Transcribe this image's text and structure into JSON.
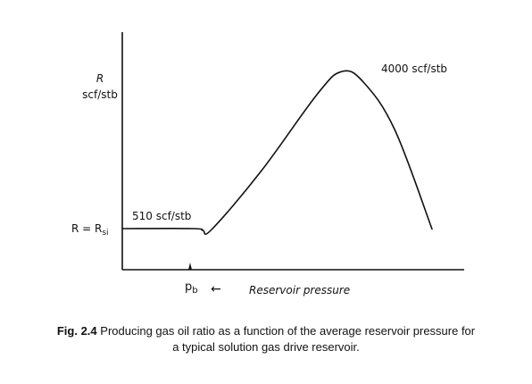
{
  "chart_data": {
    "type": "line",
    "title": "",
    "xlabel": "Reservoir pressure",
    "ylabel": "R\nscf/stb",
    "ylabel_line1": "R",
    "ylabel_line2": "scf/stb",
    "x_axis_direction": "decreasing pressure to the right",
    "annotations": {
      "rsi_axis_label": "R = R",
      "rsi_subscript": "si",
      "initial_value_label": "510 scf/stb",
      "peak_value_label": "4000 scf/stb",
      "bubble_point_label": "p",
      "bubble_point_subscript": "b",
      "arrow": "←"
    },
    "series": [
      {
        "description": "Producing gas oil ratio R",
        "points": [
          {
            "x": 0,
            "y": 510
          },
          {
            "x": 0.23,
            "y": 510
          },
          {
            "x": 0.26,
            "y": 470
          },
          {
            "x": 0.29,
            "y": 500
          },
          {
            "x": 0.45,
            "y": 1800
          },
          {
            "x": 0.63,
            "y": 3500
          },
          {
            "x": 0.71,
            "y": 4000
          },
          {
            "x": 0.78,
            "y": 3750
          },
          {
            "x": 0.88,
            "y": 2700
          },
          {
            "x": 1.0,
            "y": 500
          }
        ]
      }
    ],
    "grid": false,
    "legend": "none"
  },
  "caption": {
    "fig_number": "Fig. 2.4",
    "text_line1": "Producing gas oil ratio as a function of the average reservoir pressure for",
    "text_line2": "a typical solution gas drive reservoir."
  },
  "colors": {
    "ink": "#111111",
    "background": "#ffffff"
  }
}
